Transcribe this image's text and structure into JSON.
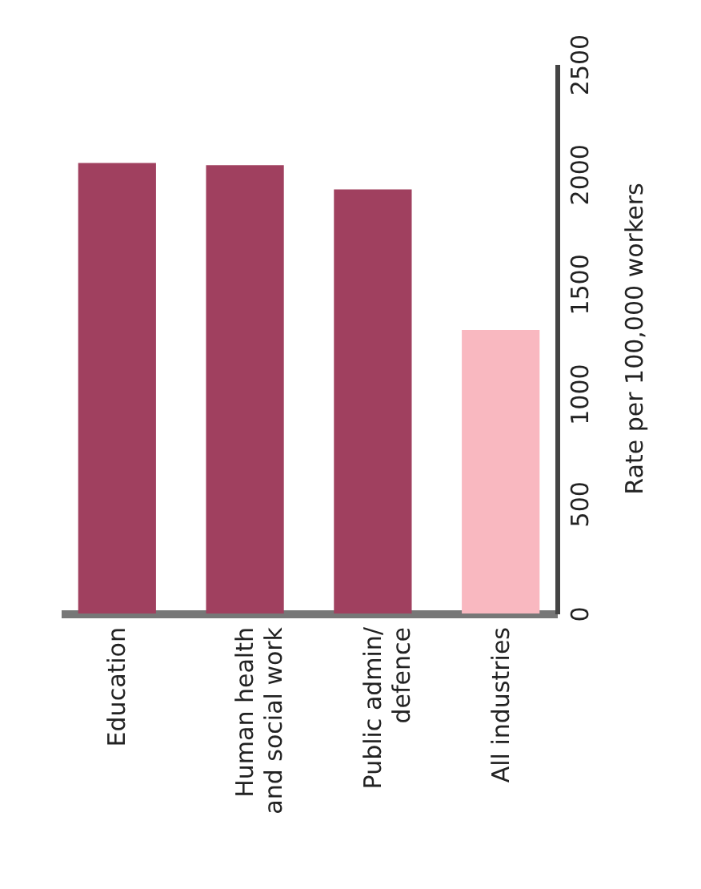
{
  "chart_data": {
    "type": "bar",
    "ylabel": "Rate per 100,000 workers",
    "categories": [
      "Education",
      "Human health and social work",
      "Public admin/ defence",
      "All industries"
    ],
    "values": [
      2050,
      2040,
      1930,
      1290
    ],
    "colors": [
      "#a0405f",
      "#a0405f",
      "#a0405f",
      "#f9b8c0"
    ],
    "ylim": [
      0,
      2500
    ],
    "yticks": [
      0,
      500,
      1000,
      1500,
      2000,
      2500
    ],
    "grid": false
  }
}
